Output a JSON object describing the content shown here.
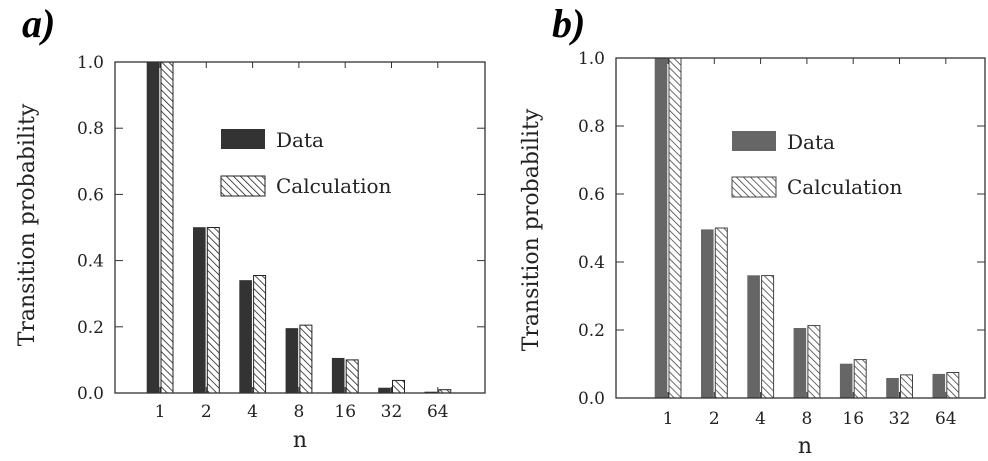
{
  "chart_data": [
    {
      "panel_label": "a)",
      "type": "bar",
      "categories": [
        "1",
        "2",
        "4",
        "8",
        "16",
        "32",
        "64"
      ],
      "series": [
        {
          "name": "Data",
          "values": [
            1.0,
            0.5,
            0.34,
            0.195,
            0.105,
            0.015,
            0.003
          ]
        },
        {
          "name": "Calculation",
          "values": [
            1.0,
            0.5,
            0.355,
            0.205,
            0.1,
            0.038,
            0.01
          ]
        }
      ],
      "xlabel": "n",
      "ylabel": "Transition probability",
      "ylim": [
        0.0,
        1.0
      ],
      "yticks": [
        "0.0",
        "0.2",
        "0.4",
        "0.6",
        "0.8",
        "1.0"
      ],
      "legend": "inside-upper-right",
      "grid": false,
      "colors": {
        "data": "#333333",
        "calculation_hatch": "#222222"
      }
    },
    {
      "panel_label": "b)",
      "type": "bar",
      "categories": [
        "1",
        "2",
        "4",
        "8",
        "16",
        "32",
        "64"
      ],
      "series": [
        {
          "name": "Data",
          "values": [
            1.0,
            0.495,
            0.36,
            0.205,
            0.1,
            0.058,
            0.07
          ]
        },
        {
          "name": "Calculation",
          "values": [
            1.0,
            0.5,
            0.36,
            0.213,
            0.113,
            0.068,
            0.075
          ]
        }
      ],
      "xlabel": "n",
      "ylabel": "Transition probability",
      "ylim": [
        0.0,
        1.0
      ],
      "yticks": [
        "0.0",
        "0.2",
        "0.4",
        "0.6",
        "0.8",
        "1.0"
      ],
      "legend": "inside-upper-right",
      "grid": false,
      "colors": {
        "data": "#666666",
        "calculation_hatch": "#444444"
      }
    }
  ]
}
